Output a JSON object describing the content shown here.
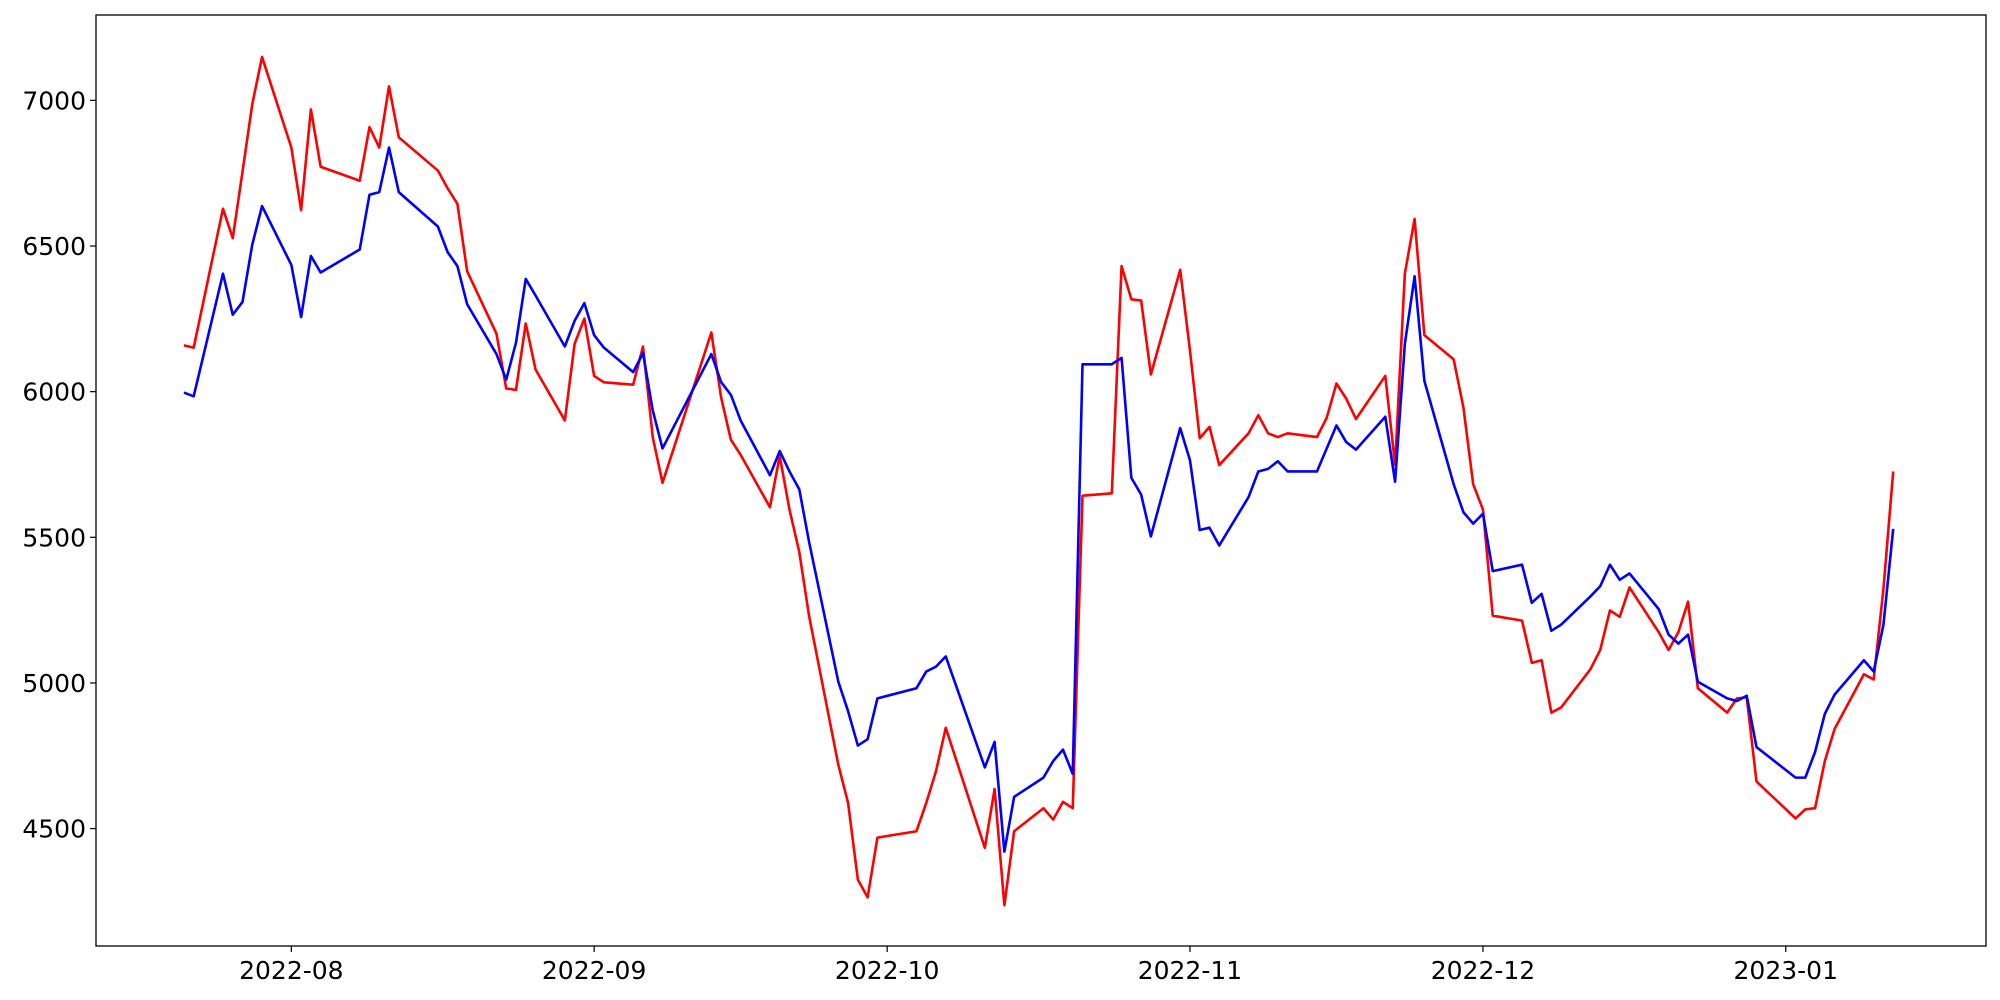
{
  "chart_data": {
    "type": "line",
    "x": [
      -11,
      -10,
      -7,
      -6,
      -5,
      -4,
      -3,
      0,
      1,
      2,
      3,
      7,
      8,
      9,
      10,
      11,
      15,
      16,
      17,
      18,
      21,
      22,
      23,
      24,
      25,
      28,
      29,
      30,
      31,
      32,
      35,
      36,
      37,
      38,
      43,
      44,
      45,
      46,
      49,
      50,
      51,
      52,
      53,
      56,
      57,
      58,
      59,
      60,
      64,
      65,
      66,
      67,
      71,
      72,
      73,
      74,
      77,
      78,
      79,
      80,
      81,
      84,
      85,
      86,
      87,
      88,
      91,
      92,
      93,
      94,
      95,
      98,
      99,
      100,
      101,
      102,
      105,
      106,
      107,
      108,
      109,
      112,
      113,
      114,
      115,
      116,
      119,
      120,
      121,
      122,
      123,
      126,
      127,
      128,
      129,
      130,
      133,
      134,
      135,
      136,
      137,
      140,
      141,
      142,
      143,
      144,
      147,
      148,
      149,
      150,
      154,
      155,
      156,
      157,
      158,
      161,
      162,
      163,
      164
    ],
    "series": [
      {
        "color": "#ff0000",
        "values": [
          6159,
          6151,
          6628,
          6527,
          6755,
          6987,
          7149,
          6838,
          6623,
          6969,
          6772,
          6724,
          6908,
          6838,
          7048,
          6873,
          6759,
          6698,
          6645,
          6413,
          6199,
          6011,
          6006,
          6234,
          6076,
          5901,
          6164,
          6251,
          6054,
          6032,
          6024,
          6155,
          5844,
          5687,
          6203,
          5980,
          5835,
          5783,
          5603,
          5779,
          5595,
          5450,
          5231,
          4719,
          4588,
          4325,
          4264,
          4469,
          4491,
          4588,
          4697,
          4846,
          4434,
          4636,
          4237,
          4491,
          4570,
          4531,
          4592,
          4570,
          5643,
          5651,
          6431,
          6317,
          6313,
          6059,
          6418,
          6142,
          5840,
          5879,
          5748,
          5857,
          5919,
          5857,
          5844,
          5857,
          5844,
          5910,
          6028,
          5976,
          5906,
          6054,
          5748,
          6405,
          6593,
          6194,
          6111,
          5945,
          5682,
          5595,
          5231,
          5214,
          5069,
          5078,
          4898,
          4916,
          5047,
          5113,
          5249,
          5227,
          5328,
          5174,
          5113,
          5174,
          5279,
          4982,
          4898,
          4947,
          4951,
          4662,
          4535,
          4566,
          4570,
          4732,
          4842,
          5030,
          5012,
          5323,
          5726
        ]
      },
      {
        "color": "#0000ff",
        "values": [
          5997,
          5984,
          6405,
          6264,
          6308,
          6505,
          6637,
          6435,
          6256,
          6466,
          6409,
          6488,
          6676,
          6685,
          6838,
          6685,
          6567,
          6479,
          6431,
          6300,
          6129,
          6041,
          6168,
          6387,
          6330,
          6155,
          6243,
          6304,
          6194,
          6151,
          6067,
          6133,
          5936,
          5805,
          6129,
          6033,
          5989,
          5901,
          5713,
          5796,
          5726,
          5665,
          5485,
          5004,
          4903,
          4785,
          4807,
          4947,
          4982,
          5039,
          5056,
          5091,
          4710,
          4798,
          4421,
          4609,
          4675,
          4732,
          4771,
          4688,
          6094,
          6094,
          6116,
          5704,
          5647,
          5503,
          5875,
          5765,
          5525,
          5533,
          5472,
          5638,
          5726,
          5735,
          5761,
          5726,
          5726,
          5805,
          5884,
          5827,
          5801,
          5914,
          5691,
          6164,
          6396,
          6037,
          5682,
          5586,
          5547,
          5581,
          5384,
          5406,
          5275,
          5306,
          5179,
          5200,
          5297,
          5332,
          5406,
          5354,
          5376,
          5253,
          5166,
          5135,
          5166,
          5004,
          4947,
          4938,
          4956,
          4780,
          4675,
          4675,
          4763,
          4894,
          4960,
          5078,
          5039,
          5200,
          5529
        ]
      }
    ],
    "xlim": [
      -20,
      173.5
    ],
    "xticks": [
      {
        "value": 0,
        "label": "2022-08"
      },
      {
        "value": 31,
        "label": "2022-09"
      },
      {
        "value": 61,
        "label": "2022-10"
      },
      {
        "value": 92,
        "label": "2022-11"
      },
      {
        "value": 122,
        "label": "2022-12"
      },
      {
        "value": 153,
        "label": "2023-01"
      }
    ],
    "ylim": [
      4097,
      7293
    ],
    "yticks": [
      4500,
      5000,
      5500,
      6000,
      6500,
      7000
    ],
    "grid": false
  }
}
